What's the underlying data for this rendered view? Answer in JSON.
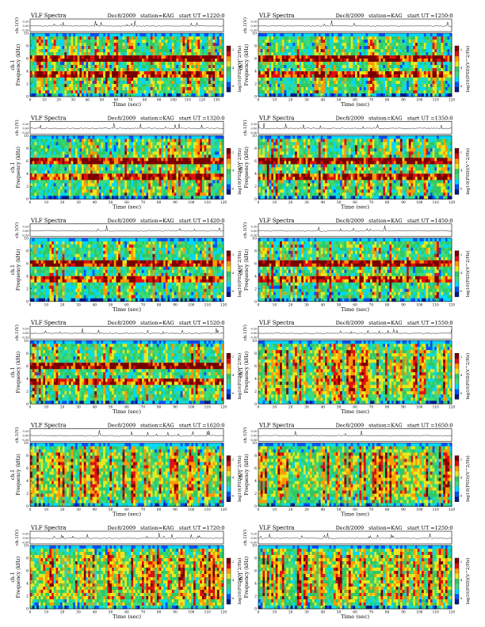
{
  "page": {
    "background": "#ffffff"
  },
  "colors": {
    "spectrogram_scale": [
      "#001a8c",
      "#0050ff",
      "#00d8ff",
      "#3cdc78",
      "#2fc864",
      "#e8e81e",
      "#ff9a00",
      "#e01010",
      "#7a0000"
    ],
    "waveform": "#000000",
    "border": "#000000"
  },
  "chart_data": [
    {
      "id": "p1",
      "type": "heatmap",
      "title": "VLF Spectra",
      "date": "Dec8/2009",
      "station": "station=KAG",
      "start_ut_label": "start  UT",
      "start_ut": "=1220:0",
      "wave_ylabel": "ch.1(V)",
      "wave_ticks": [
        "0.20",
        "0.00",
        "-0.30"
      ],
      "ylabel": "Frequency (kHz)",
      "ylabel_prefix": "ch.1",
      "yticks": [
        "0",
        "2",
        "4",
        "6",
        "8",
        "10"
      ],
      "ylim": [
        0,
        10
      ],
      "xlabel": "Time (sec)",
      "xticks": [
        "0",
        "10",
        "20",
        "30",
        "40",
        "50",
        "60",
        "70",
        "80",
        "90",
        "100",
        "110",
        "120",
        "130"
      ],
      "xlim": [
        0,
        135
      ],
      "colorbar_label": "log10(PSD)(V^2/Hz)",
      "colorbar_ticks": [
        "-2",
        "-4",
        "-6"
      ],
      "pattern": "banded",
      "seed": 11
    },
    {
      "id": "p2",
      "type": "heatmap",
      "title": "VLF Spectra",
      "date": "Dec8/2009",
      "station": "station=KAG",
      "start_ut_label": "start  UT",
      "start_ut": "=1250:0",
      "wave_ylabel": "ch.1(V)",
      "wave_ticks": [
        "0.20",
        "0.00",
        "-0.30"
      ],
      "ylabel": "Frequency (kHz)",
      "ylabel_prefix": "ch.1",
      "yticks": [
        "0",
        "2",
        "4",
        "6",
        "8",
        "10"
      ],
      "ylim": [
        0,
        10
      ],
      "xlabel": "Time (sec)",
      "xticks": [
        "0",
        "10",
        "20",
        "30",
        "40",
        "50",
        "60",
        "70",
        "80",
        "90",
        "100",
        "110",
        "120"
      ],
      "xlim": [
        0,
        120
      ],
      "colorbar_label": "log10(PSD)(V^2/Hz)",
      "colorbar_ticks": [
        "-2",
        "-4",
        "-6"
      ],
      "pattern": "banded",
      "seed": 23
    },
    {
      "id": "p3",
      "type": "heatmap",
      "title": "VLF Spectra",
      "date": "Dec8/2009",
      "station": "station=KAG",
      "start_ut_label": "start  UT",
      "start_ut": "=1320:0",
      "wave_ylabel": "ch.1(V)",
      "wave_ticks": [
        "0.20",
        "0.00",
        "-0.30"
      ],
      "ylabel": "Frequency (kHz)",
      "ylabel_prefix": "ch.1",
      "yticks": [
        "0",
        "2",
        "4",
        "6",
        "8",
        "10"
      ],
      "ylim": [
        0,
        10
      ],
      "xlabel": "Time (sec)",
      "xticks": [
        "0",
        "10",
        "20",
        "30",
        "40",
        "50",
        "60",
        "70",
        "80",
        "90",
        "100",
        "110",
        "120"
      ],
      "xlim": [
        0,
        120
      ],
      "colorbar_label": "log10(PSD)(V^2/Hz)",
      "colorbar_ticks": [
        "-2",
        "-4",
        "-6"
      ],
      "pattern": "banded",
      "seed": 37
    },
    {
      "id": "p4",
      "type": "heatmap",
      "title": "VLF Spectra",
      "date": "Dec8/2009",
      "station": "station=KAG",
      "start_ut_label": "start  UT",
      "start_ut": "=1350:0",
      "wave_ylabel": "ch.1(V)",
      "wave_ticks": [
        "0.20",
        "0.00",
        "-0.30"
      ],
      "ylabel": "Frequency (kHz)",
      "ylabel_prefix": "ch.1",
      "yticks": [
        "0",
        "2",
        "4",
        "6",
        "8",
        "10"
      ],
      "ylim": [
        0,
        10
      ],
      "xlabel": "Time (sec)",
      "xticks": [
        "0",
        "10",
        "20",
        "30",
        "40",
        "50",
        "60",
        "70",
        "80",
        "90",
        "100",
        "110",
        "120"
      ],
      "xlim": [
        0,
        120
      ],
      "colorbar_label": "log10(PSD)(V^2/Hz)",
      "colorbar_ticks": [
        "-2",
        "-4",
        "-6"
      ],
      "pattern": "banded",
      "seed": 41
    },
    {
      "id": "p5",
      "type": "heatmap",
      "title": "VLF Spectra",
      "date": "Dec8/2009",
      "station": "station=KAG",
      "start_ut_label": "start  UT",
      "start_ut": "=1420:0",
      "wave_ylabel": "ch.1(V)",
      "wave_ticks": [
        "0.20",
        "0.00",
        "-0.30"
      ],
      "ylabel": "Frequency (kHz)",
      "ylabel_prefix": "ch.1",
      "yticks": [
        "0",
        "2",
        "4",
        "6",
        "8",
        "10"
      ],
      "ylim": [
        0,
        10
      ],
      "xlabel": "Time (sec)",
      "xticks": [
        "0",
        "10",
        "20",
        "30",
        "40",
        "50",
        "60",
        "70",
        "80",
        "90",
        "100",
        "110",
        "120"
      ],
      "xlim": [
        0,
        120
      ],
      "colorbar_label": "log10(PSD)(V^2/Hz)",
      "colorbar_ticks": [
        "-2",
        "-4",
        "-6"
      ],
      "pattern": "banded",
      "seed": 53
    },
    {
      "id": "p6",
      "type": "heatmap",
      "title": "VLF Spectra",
      "date": "Dec8/2009",
      "station": "station=KAG",
      "start_ut_label": "start  UT",
      "start_ut": "=1450:0",
      "wave_ylabel": "ch.1(V)",
      "wave_ticks": [
        "0.20",
        "0.00",
        "-0.30"
      ],
      "ylabel": "Frequency (kHz)",
      "ylabel_prefix": "ch.1",
      "yticks": [
        "0",
        "2",
        "4",
        "6",
        "8",
        "10"
      ],
      "ylim": [
        0,
        10
      ],
      "xlabel": "Time (sec)",
      "xticks": [
        "0",
        "10",
        "20",
        "30",
        "40",
        "50",
        "60",
        "70",
        "80",
        "90",
        "100",
        "110",
        "120"
      ],
      "xlim": [
        0,
        120
      ],
      "colorbar_label": "log10(PSD)(V^2/Hz)",
      "colorbar_ticks": [
        "-2",
        "-4",
        "-6"
      ],
      "pattern": "banded",
      "seed": 67
    },
    {
      "id": "p7",
      "type": "heatmap",
      "title": "VLF Spectra",
      "date": "Dec8/2009",
      "station": "station=KAG",
      "start_ut_label": "start  UT",
      "start_ut": "=1520:0",
      "wave_ylabel": "ch.1(V)",
      "wave_ticks": [
        "0.20",
        "0.00",
        "-0.30"
      ],
      "ylabel": "Frequency (kHz)",
      "ylabel_prefix": "ch.1",
      "yticks": [
        "0",
        "2",
        "4",
        "6",
        "8",
        "10"
      ],
      "ylim": [
        0,
        10
      ],
      "xlabel": "Time (sec)",
      "xticks": [
        "0",
        "10",
        "20",
        "30",
        "40",
        "50",
        "60",
        "70",
        "80",
        "90",
        "100",
        "110",
        "120"
      ],
      "xlim": [
        0,
        120
      ],
      "colorbar_label": "log10(PSD)(V^2/Hz)",
      "colorbar_ticks": [
        "-2",
        "-4",
        "-6"
      ],
      "pattern": "banded",
      "seed": 71
    },
    {
      "id": "p8",
      "type": "heatmap",
      "title": "VLF Spectra",
      "date": "Dec8/2009",
      "station": "station=KAG",
      "start_ut_label": "start  UT",
      "start_ut": "=1550:0",
      "wave_ylabel": "ch.1(V)",
      "wave_ticks": [
        "0.20",
        "0.00",
        "-0.30"
      ],
      "ylabel": "Frequency (kHz)",
      "ylabel_prefix": "ch.1",
      "yticks": [
        "0",
        "2",
        "4",
        "6",
        "8",
        "10"
      ],
      "ylim": [
        0,
        10
      ],
      "xlabel": "Time (sec)",
      "xticks": [
        "0",
        "10",
        "20",
        "30",
        "40",
        "50",
        "60",
        "70",
        "80",
        "90",
        "100",
        "110",
        "120"
      ],
      "xlim": [
        0,
        120
      ],
      "colorbar_label": "log10(PSD)(V^2/Hz)",
      "colorbar_ticks": [
        "-2",
        "-4",
        "-6"
      ],
      "pattern": "striped",
      "seed": 83
    },
    {
      "id": "p9",
      "type": "heatmap",
      "title": "VLF Spectra",
      "date": "Dec8/2009",
      "station": "station=KAG",
      "start_ut_label": "start  UT",
      "start_ut": "=1620:0",
      "wave_ylabel": "ch.1(V)",
      "wave_ticks": [
        "0.20",
        "0.00",
        "-0.30"
      ],
      "ylabel": "Frequency (kHz)",
      "ylabel_prefix": "ch.1",
      "yticks": [
        "0",
        "2",
        "4",
        "6",
        "8",
        "10"
      ],
      "ylim": [
        0,
        10
      ],
      "xlabel": "Time (sec)",
      "xticks": [
        "0",
        "10",
        "20",
        "30",
        "40",
        "50",
        "60",
        "70",
        "80",
        "90",
        "100",
        "110",
        "120"
      ],
      "xlim": [
        0,
        120
      ],
      "colorbar_label": "log10(PSD)(V^2/Hz)",
      "colorbar_ticks": [
        "-2",
        "-4",
        "-6"
      ],
      "pattern": "striped",
      "seed": 97
    },
    {
      "id": "p10",
      "type": "heatmap",
      "title": "VLF Spectra",
      "date": "Dec8/2009",
      "station": "station=KAG",
      "start_ut_label": "start  UT",
      "start_ut": "=1650:0",
      "wave_ylabel": "ch.1(V)",
      "wave_ticks": [
        "0.20",
        "0.00",
        "-0.30"
      ],
      "ylabel": "Frequency (kHz)",
      "ylabel_prefix": "ch.1",
      "yticks": [
        "0",
        "2",
        "4",
        "6",
        "8",
        "10"
      ],
      "ylim": [
        0,
        10
      ],
      "xlabel": "Time (sec)",
      "xticks": [
        "0",
        "10",
        "20",
        "30",
        "40",
        "50",
        "60",
        "70",
        "80",
        "90",
        "100",
        "110",
        "120"
      ],
      "xlim": [
        0,
        120
      ],
      "colorbar_label": "log10(PSD)(V^2/Hz)",
      "colorbar_ticks": [
        "-2",
        "-4",
        "-6"
      ],
      "pattern": "striped",
      "seed": 101
    },
    {
      "id": "p11",
      "type": "heatmap",
      "title": "VLF Spectra",
      "date": "Dec8/2009",
      "station": "station=KAG",
      "start_ut_label": "start  UT",
      "start_ut": "=1720:0",
      "wave_ylabel": "ch.1(V)",
      "wave_ticks": [
        "0.20",
        "0.00",
        "-0.30"
      ],
      "ylabel": "Frequency (kHz)",
      "ylabel_prefix": "ch.1",
      "yticks": [
        "0",
        "2",
        "4",
        "6",
        "8",
        "10"
      ],
      "ylim": [
        0,
        10
      ],
      "xlabel": "Time (sec)",
      "xticks": [
        "0",
        "10",
        "20",
        "30",
        "40",
        "50",
        "60",
        "70",
        "80",
        "90",
        "100",
        "110",
        "120"
      ],
      "xlim": [
        0,
        120
      ],
      "colorbar_label": "log10(PSD)(V^2/Hz)",
      "colorbar_ticks": [
        "-2",
        "-4",
        "-6"
      ],
      "pattern": "striped",
      "seed": 113
    },
    {
      "id": "p12",
      "type": "heatmap",
      "title": "VLF Spectra",
      "date": "Dec8/2009",
      "station": "station=KAG",
      "start_ut_label": "start  UT",
      "start_ut": "=1250:0",
      "wave_ylabel": "ch.1(V)",
      "wave_ticks": [
        "0.20",
        "0.00",
        "-0.30"
      ],
      "ylabel": "Frequency (kHz)",
      "ylabel_prefix": "ch.1",
      "yticks": [
        "0",
        "2",
        "4",
        "6",
        "8",
        "10"
      ],
      "ylim": [
        0,
        10
      ],
      "xlabel": "Time (sec)",
      "xticks": [
        "0",
        "10",
        "20",
        "30",
        "40",
        "50",
        "60",
        "70",
        "80",
        "90",
        "100",
        "110",
        "120"
      ],
      "xlim": [
        0,
        120
      ],
      "colorbar_label": "log10(PSD)(V^2/Hz)",
      "colorbar_ticks": [
        "-2",
        "-4",
        "-6"
      ],
      "pattern": "striped",
      "seed": 127
    }
  ]
}
